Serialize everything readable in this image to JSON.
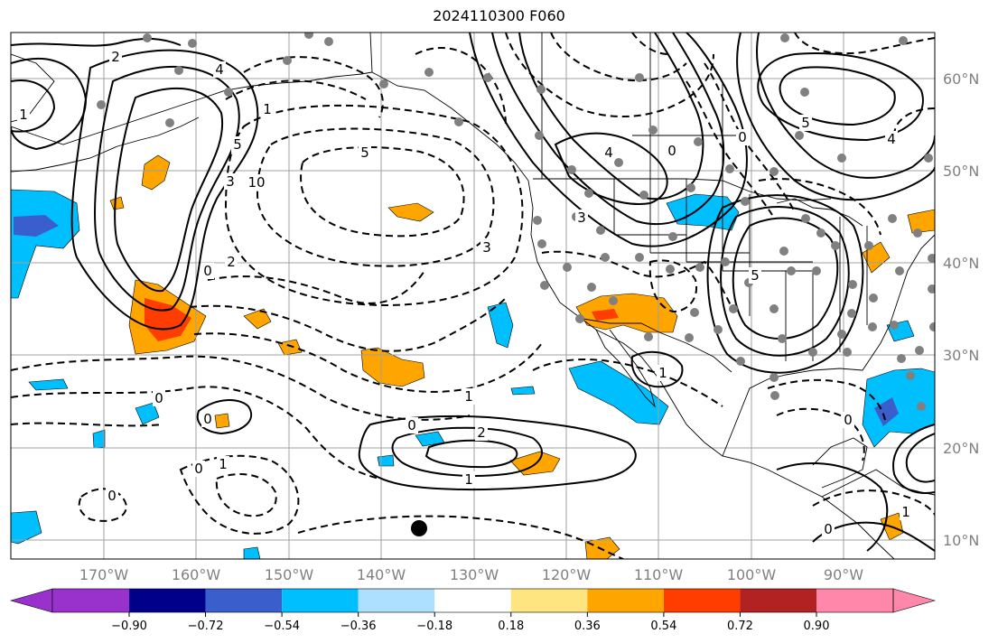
{
  "title": "2024110300 F060",
  "lon_labels": [
    "170°W",
    "160°W",
    "150°W",
    "140°W",
    "130°W",
    "120°W",
    "110°W",
    "100°W",
    "90°W"
  ],
  "lat_labels": [
    "60°N",
    "50°N",
    "40°N",
    "30°N",
    "20°N",
    "10°N"
  ],
  "colorbar": {
    "ticks": [
      "−0.90",
      "−0.72",
      "−0.54",
      "−0.36",
      "−0.18",
      "0.18",
      "0.36",
      "0.54",
      "0.72",
      "0.90"
    ],
    "colors": [
      "#9932CC",
      "#00008B",
      "#3A5FCD",
      "#00BFFF",
      "#ADDFFF",
      "#FFFFFF",
      "#FFE57F",
      "#FFA500",
      "#FF3D00",
      "#B22222",
      "#FF88AA"
    ]
  },
  "contour_labels": [
    "2",
    "4",
    "1",
    "5",
    "3",
    "10",
    "0",
    "2",
    "1",
    "5",
    "3",
    "0",
    "4",
    "3",
    "0",
    "5",
    "1",
    "1",
    "0",
    "2",
    "1",
    "0",
    "1",
    "0",
    "0",
    "0",
    "4",
    "5",
    "1",
    "0",
    "0"
  ],
  "colors": {
    "grid": "#a0a0a0",
    "axis_text": "#808080",
    "station_dot": "#808080",
    "marker": "#000000"
  }
}
